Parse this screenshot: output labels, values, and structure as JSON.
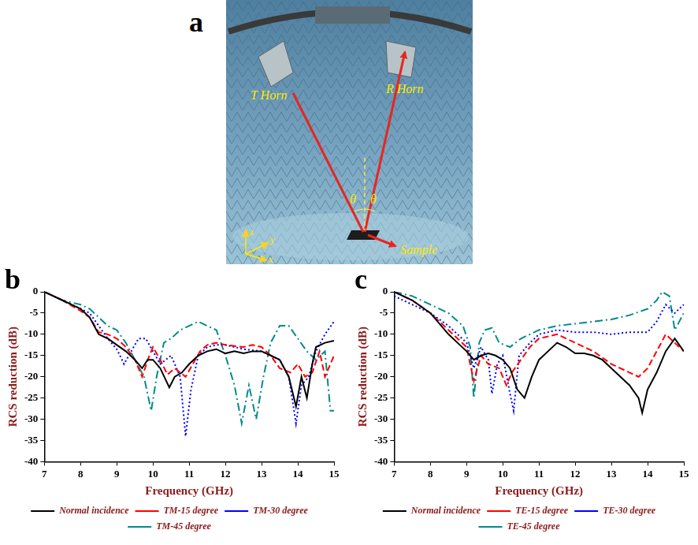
{
  "photo_panel": {
    "panel_label": "a",
    "transmitter": "T Horn",
    "receiver": "R Horn",
    "angle": "θ",
    "sample": "Sample",
    "axes": {
      "z": "z",
      "y": "y",
      "x": "x"
    }
  },
  "chart_data": [
    {
      "type": "line",
      "panel_label": "b",
      "x_label": "Frequency (GHz)",
      "y_label": "RCS reduction (dB)",
      "xlim": [
        7,
        15
      ],
      "xticks": [
        7,
        8,
        9,
        10,
        11,
        12,
        13,
        14,
        15
      ],
      "ylim": [
        -40,
        0
      ],
      "yticks": [
        -40,
        -35,
        -30,
        -25,
        -20,
        -15,
        -10,
        -5,
        0
      ],
      "grid": false,
      "legend": "bottom",
      "series": [
        {
          "name": "Normal incidence",
          "color": "#000000",
          "line_style": "solid",
          "x": [
            7,
            7.25,
            7.5,
            7.75,
            8,
            8.25,
            8.5,
            8.75,
            9,
            9.25,
            9.5,
            9.7,
            9.85,
            10,
            10.2,
            10.45,
            10.6,
            10.8,
            11,
            11.25,
            11.5,
            11.75,
            12,
            12.25,
            12.5,
            12.75,
            13,
            13.25,
            13.5,
            13.75,
            13.95,
            14.1,
            14.25,
            14.4,
            14.5,
            14.75,
            15
          ],
          "values": [
            0,
            -1,
            -2,
            -3,
            -4,
            -6,
            -10,
            -11,
            -12.5,
            -14,
            -16,
            -18,
            -16,
            -16,
            -18,
            -22.5,
            -20,
            -19,
            -17,
            -15,
            -14,
            -13.5,
            -14.5,
            -14,
            -14.5,
            -14,
            -14,
            -15,
            -16,
            -20,
            -27,
            -20,
            -25,
            -17,
            -13,
            -12,
            -11.5
          ]
        },
        {
          "name": "TM-15 degree",
          "color": "#ff0000",
          "line_style": "dashed",
          "x": [
            7,
            7.5,
            8,
            8.25,
            8.5,
            8.75,
            9,
            9.25,
            9.5,
            9.7,
            9.9,
            10,
            10.2,
            10.4,
            10.6,
            10.9,
            11.1,
            11.3,
            11.5,
            11.75,
            12,
            12.5,
            12.75,
            13,
            13.25,
            13.5,
            13.8,
            14,
            14.2,
            14.4,
            14.6,
            14.75,
            15
          ],
          "values": [
            0,
            -2,
            -4.5,
            -6,
            -9.5,
            -10,
            -11,
            -13,
            -16,
            -20,
            -15,
            -13,
            -16,
            -19.5,
            -18,
            -20,
            -17,
            -14,
            -12.5,
            -12,
            -12.5,
            -13,
            -12.5,
            -13,
            -15,
            -18,
            -19,
            -17,
            -20,
            -19,
            -14,
            -20,
            -15
          ]
        },
        {
          "name": "TM-30 degree",
          "color": "#0000ff",
          "line_style": "dotted",
          "x": [
            7,
            7.5,
            8,
            8.25,
            8.5,
            8.75,
            9,
            9.2,
            9.4,
            9.6,
            9.8,
            10,
            10.2,
            10.5,
            10.75,
            10.9,
            11.05,
            11.25,
            11.5,
            11.75,
            12,
            12.5,
            13,
            13.5,
            13.75,
            13.95,
            14.1,
            14.3,
            14.5,
            14.75,
            15
          ],
          "values": [
            0,
            -2,
            -4,
            -5,
            -8,
            -11,
            -13.5,
            -17,
            -14,
            -11,
            -11,
            -14,
            -17,
            -15,
            -20,
            -34,
            -23,
            -15,
            -13,
            -12.5,
            -12.5,
            -13.5,
            -14,
            -16,
            -20,
            -31,
            -22,
            -20,
            -14,
            -10,
            -7
          ]
        },
        {
          "name": "TM-45 degree",
          "color": "#008b8b",
          "line_style": "dashdot",
          "x": [
            7,
            7.5,
            8,
            8.25,
            8.5,
            8.75,
            9,
            9.25,
            9.5,
            9.75,
            9.95,
            10.1,
            10.3,
            10.5,
            10.75,
            11,
            11.25,
            11.5,
            11.75,
            12,
            12.25,
            12.45,
            12.65,
            12.85,
            13.05,
            13.25,
            13.5,
            13.75,
            14,
            14.25,
            14.5,
            14.75,
            14.9,
            15
          ],
          "values": [
            0,
            -2,
            -3,
            -4,
            -6,
            -8,
            -9,
            -12,
            -16,
            -20,
            -28,
            -20,
            -12,
            -11,
            -9,
            -8,
            -7,
            -8,
            -9,
            -15,
            -22,
            -31,
            -22,
            -30,
            -20,
            -12,
            -8,
            -8,
            -11,
            -14,
            -16,
            -14,
            -28,
            -28
          ]
        }
      ]
    },
    {
      "type": "line",
      "panel_label": "c",
      "x_label": "Frequency (GHz)",
      "y_label": "RCS reduction (dB)",
      "xlim": [
        7,
        15
      ],
      "xticks": [
        7,
        8,
        9,
        10,
        11,
        12,
        13,
        14,
        15
      ],
      "ylim": [
        -40,
        0
      ],
      "yticks": [
        -40,
        -35,
        -30,
        -25,
        -20,
        -15,
        -10,
        -5,
        0
      ],
      "grid": false,
      "legend": "bottom",
      "series": [
        {
          "name": "Normal incidence",
          "color": "#000000",
          "line_style": "solid",
          "x": [
            7,
            7.5,
            8,
            8.5,
            8.75,
            9,
            9.2,
            9.4,
            9.6,
            9.8,
            10,
            10.2,
            10.4,
            10.6,
            10.8,
            11,
            11.25,
            11.5,
            11.75,
            12,
            12.25,
            12.5,
            12.75,
            13,
            13.25,
            13.5,
            13.75,
            13.85,
            14,
            14.25,
            14.5,
            14.75,
            15
          ],
          "values": [
            0,
            -2,
            -5,
            -10,
            -12,
            -14,
            -16,
            -15,
            -14.5,
            -15,
            -16,
            -18,
            -23,
            -25,
            -20,
            -16,
            -14,
            -12,
            -13,
            -14.5,
            -14.5,
            -15,
            -16,
            -18,
            -20,
            -22,
            -25,
            -28.5,
            -23,
            -19,
            -14,
            -11,
            -14
          ]
        },
        {
          "name": "TE-15 degree",
          "color": "#ff0000",
          "line_style": "dashed",
          "x": [
            7,
            7.5,
            8,
            8.5,
            9,
            9.2,
            9.4,
            9.6,
            9.9,
            10.1,
            10.25,
            10.5,
            10.75,
            11,
            11.5,
            12,
            12.5,
            13,
            13.5,
            13.75,
            14,
            14.25,
            14.5,
            14.75,
            15
          ],
          "values": [
            0,
            -2,
            -5,
            -9,
            -13,
            -21,
            -15,
            -17,
            -18,
            -22,
            -19,
            -16,
            -13,
            -11,
            -10,
            -12,
            -14,
            -17,
            -19,
            -20,
            -18,
            -14,
            -10,
            -12,
            -14
          ]
        },
        {
          "name": "TE-30 degree",
          "color": "#0000ff",
          "line_style": "dotted",
          "x": [
            7,
            7.5,
            8,
            8.5,
            9,
            9.2,
            9.4,
            9.6,
            9.7,
            9.85,
            10,
            10.2,
            10.3,
            10.45,
            10.75,
            11,
            11.5,
            12,
            12.5,
            13,
            13.5,
            14,
            14.25,
            14.5,
            14.75,
            15
          ],
          "values": [
            -1,
            -3,
            -5,
            -8,
            -12,
            -18,
            -13,
            -16,
            -24,
            -17,
            -15,
            -24,
            -28,
            -15,
            -12,
            -10,
            -9,
            -9.5,
            -9.5,
            -10,
            -9.5,
            -9.5,
            -7,
            -3,
            -5,
            -3
          ]
        },
        {
          "name": "TE-45 degree",
          "color": "#008b8b",
          "line_style": "dashdot",
          "x": [
            7,
            7.5,
            8,
            8.5,
            8.9,
            9.1,
            9.2,
            9.35,
            9.5,
            9.7,
            9.9,
            10.2,
            10.5,
            11,
            11.5,
            12,
            12.5,
            13,
            13.5,
            14,
            14.25,
            14.4,
            14.6,
            14.75,
            15
          ],
          "values": [
            0,
            -1,
            -3,
            -5,
            -8,
            -13,
            -25,
            -12,
            -9,
            -8.5,
            -12,
            -13,
            -11,
            -9,
            -8,
            -7.5,
            -7,
            -6.5,
            -5.5,
            -4,
            -2,
            0,
            -1,
            -9,
            -5
          ]
        }
      ]
    }
  ]
}
